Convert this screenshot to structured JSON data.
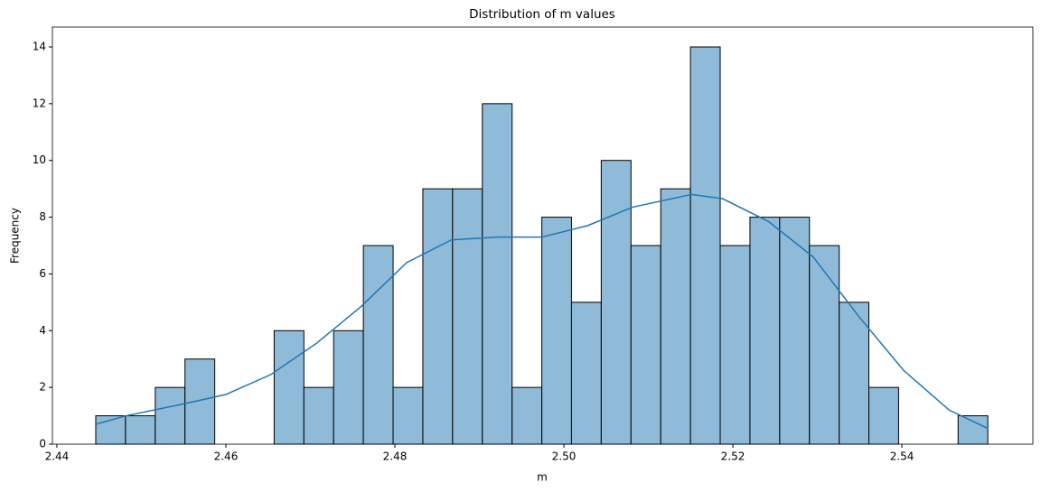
{
  "chart_data": {
    "type": "histogram",
    "title": "Distribution of m values",
    "x_label": "m",
    "y_label": "Frequency",
    "bins": [
      2.4446,
      2.44812,
      2.45164,
      2.45516,
      2.45868,
      2.4622,
      2.46571,
      2.46923,
      2.47275,
      2.47627,
      2.47979,
      2.48331,
      2.48683,
      2.49035,
      2.49387,
      2.49739,
      2.5009,
      2.50442,
      2.50794,
      2.51146,
      2.51498,
      2.5185,
      2.52202,
      2.52554,
      2.52906,
      2.53258,
      2.53609,
      2.53961,
      2.54313,
      2.54665,
      2.55017
    ],
    "values": [
      1,
      1,
      2,
      3,
      0,
      0,
      4,
      2,
      4,
      7,
      2,
      9,
      9,
      12,
      2,
      8,
      5,
      10,
      7,
      9,
      14,
      7,
      8,
      8,
      7,
      5,
      2,
      0,
      0,
      1
    ],
    "color": "#8fbbd9",
    "edge_color": "#000000",
    "kde": {
      "color": "#1f77b4",
      "x": [
        2.4446,
        2.4482,
        2.4547,
        2.46,
        2.4653,
        2.4707,
        2.476,
        2.4814,
        2.4867,
        2.4921,
        2.4974,
        2.5028,
        2.5081,
        2.5151,
        2.5188,
        2.5242,
        2.5295,
        2.5349,
        2.5402,
        2.5456,
        2.5502
      ],
      "values": [
        0.7,
        1.0,
        1.4,
        1.75,
        2.45,
        3.55,
        4.85,
        6.4,
        7.2,
        7.3,
        7.3,
        7.7,
        8.35,
        8.8,
        8.65,
        7.85,
        6.6,
        4.5,
        2.6,
        1.2,
        0.55
      ]
    },
    "xlim": [
      2.43947,
      2.5555
    ],
    "ylim": [
      0,
      14.7
    ],
    "xticks": [
      2.44,
      2.46,
      2.48,
      {
        "value": 2.5,
        "label": "2.50"
      },
      2.52,
      2.54
    ],
    "yticks": [
      0,
      2,
      4,
      6,
      8,
      10,
      12,
      14
    ]
  }
}
